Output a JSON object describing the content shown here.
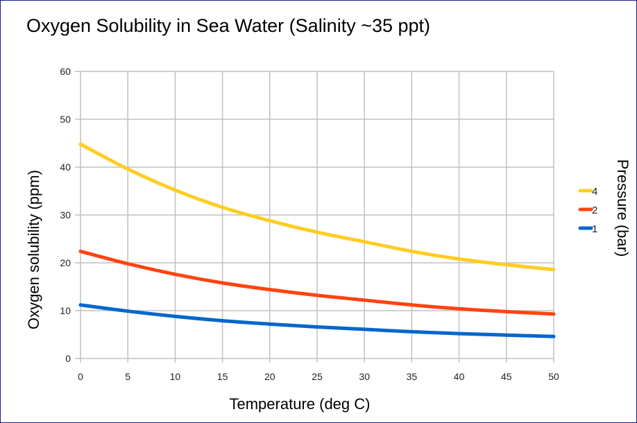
{
  "chart_data": {
    "type": "line",
    "title": "Oxygen Solubility in Sea Water (Salinity ~35 ppt)",
    "xlabel": "Temperature (deg C)",
    "ylabel": "Oxygen solubility (ppm)",
    "legend_title": "Pressure (bar)",
    "legend_placement": "right",
    "grid": true,
    "xlim": [
      0,
      50
    ],
    "ylim": [
      0,
      60
    ],
    "x_ticks": [
      "0",
      "5",
      "10",
      "15",
      "20",
      "25",
      "30",
      "35",
      "40",
      "45",
      "50"
    ],
    "y_ticks": [
      "0",
      "10",
      "20",
      "30",
      "40",
      "50",
      "60"
    ],
    "x": [
      0,
      5,
      10,
      15,
      20,
      25,
      30,
      35,
      40,
      45,
      50
    ],
    "series": [
      {
        "name": "4",
        "color": "#ffcc22",
        "values": [
          44.8,
          39.6,
          35.2,
          31.6,
          28.8,
          26.4,
          24.4,
          22.4,
          20.8,
          19.6,
          18.6
        ]
      },
      {
        "name": "2",
        "color": "#ff4411",
        "values": [
          22.4,
          19.8,
          17.6,
          15.8,
          14.4,
          13.2,
          12.2,
          11.2,
          10.4,
          9.8,
          9.3
        ]
      },
      {
        "name": "1",
        "color": "#0066cc",
        "values": [
          11.2,
          9.9,
          8.8,
          7.9,
          7.2,
          6.6,
          6.1,
          5.6,
          5.2,
          4.9,
          4.6
        ]
      }
    ]
  }
}
